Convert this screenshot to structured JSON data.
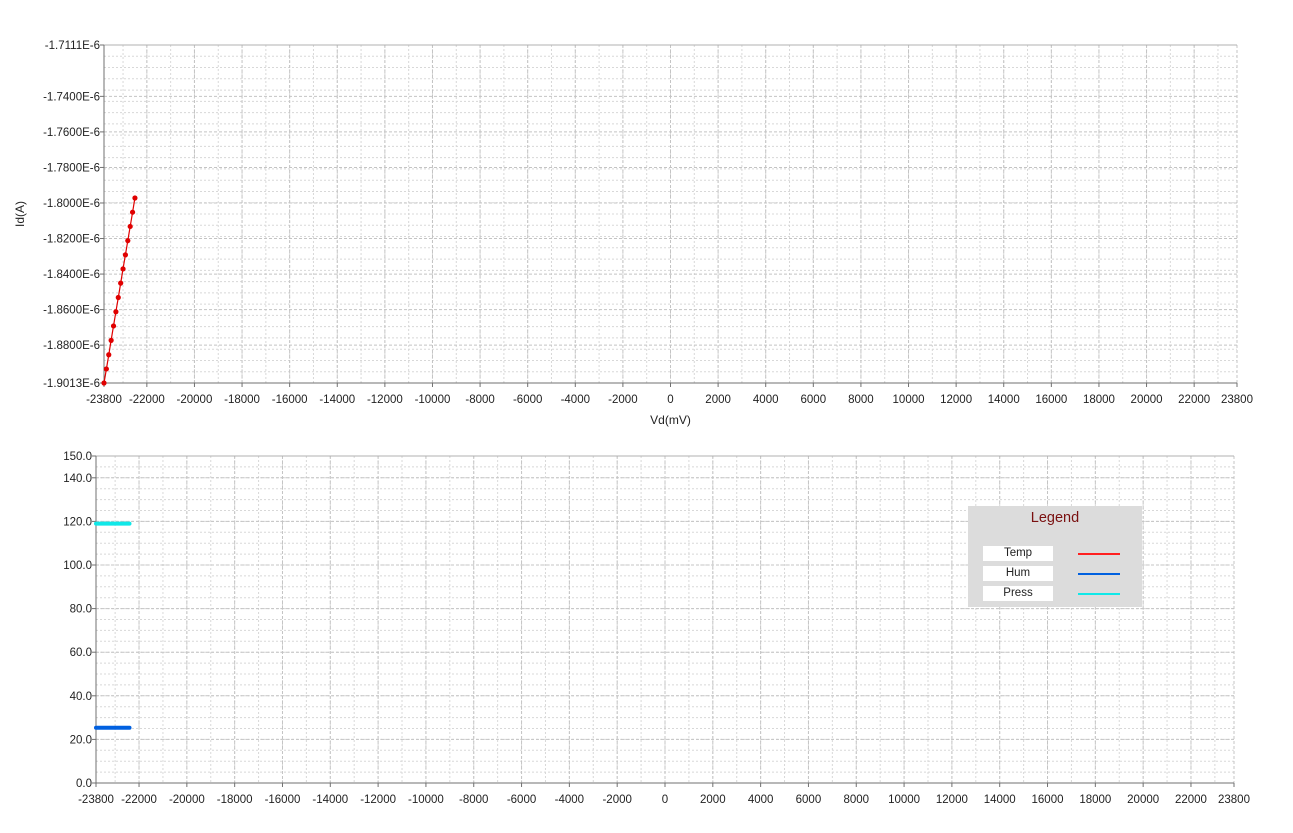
{
  "chart_data": [
    {
      "type": "line",
      "title": "",
      "xlabel": "Vd(mV)",
      "ylabel": "Id(A)",
      "xlim": [
        -23800,
        23800
      ],
      "ylim": [
        -1.9013e-06,
        -1.7111e-06
      ],
      "grid": true,
      "xticks": [
        -23800,
        -22000,
        -20000,
        -18000,
        -16000,
        -14000,
        -12000,
        -10000,
        -8000,
        -6000,
        -4000,
        -2000,
        0,
        2000,
        4000,
        6000,
        8000,
        10000,
        12000,
        14000,
        16000,
        18000,
        20000,
        22000,
        23800
      ],
      "xtick_labels": [
        "-23800",
        "-22000",
        "-20000",
        "-18000",
        "-16000",
        "-14000",
        "-12000",
        "-10000",
        "-8000",
        "-6000",
        "-4000",
        "-2000",
        "0",
        "2000",
        "4000",
        "6000",
        "8000",
        "10000",
        "12000",
        "14000",
        "16000",
        "18000",
        "20000",
        "22000",
        "23800"
      ],
      "yticks": [
        -1.7111e-06,
        -1.74e-06,
        -1.76e-06,
        -1.78e-06,
        -1.8e-06,
        -1.82e-06,
        -1.84e-06,
        -1.86e-06,
        -1.88e-06,
        -1.9013e-06
      ],
      "ytick_labels": [
        "-1.7111E-6",
        "-1.7400E-6",
        "-1.7600E-6",
        "-1.7800E-6",
        "-1.8000E-6",
        "-1.8200E-6",
        "-1.8400E-6",
        "-1.8600E-6",
        "-1.8800E-6",
        "-1.9013E-6"
      ],
      "series": [
        {
          "color": "#e00000",
          "markers": true,
          "x": [
            -23800,
            -23700,
            -23600,
            -23500,
            -23400,
            -23300,
            -23200,
            -23100,
            -23000,
            -22900,
            -22800,
            -22700,
            -22600,
            -22500
          ],
          "y": [
            -1.9013e-06,
            -1.8934e-06,
            -1.8854e-06,
            -1.8773e-06,
            -1.8692e-06,
            -1.8612e-06,
            -1.8532e-06,
            -1.8451e-06,
            -1.8371e-06,
            -1.8292e-06,
            -1.8212e-06,
            -1.8132e-06,
            -1.8052e-06,
            -1.7972e-06
          ]
        }
      ]
    },
    {
      "type": "line",
      "title": "",
      "xlabel": "",
      "ylabel": "",
      "xlim": [
        -23800,
        23800
      ],
      "ylim": [
        0,
        150
      ],
      "grid": true,
      "legend_position": "top-right",
      "xticks": [
        -23800,
        -22000,
        -20000,
        -18000,
        -16000,
        -14000,
        -12000,
        -10000,
        -8000,
        -6000,
        -4000,
        -2000,
        0,
        2000,
        4000,
        6000,
        8000,
        10000,
        12000,
        14000,
        16000,
        18000,
        20000,
        22000,
        23800
      ],
      "xtick_labels": [
        "-23800",
        "-22000",
        "-20000",
        "-18000",
        "-16000",
        "-14000",
        "-12000",
        "-10000",
        "-8000",
        "-6000",
        "-4000",
        "-2000",
        "0",
        "2000",
        "4000",
        "6000",
        "8000",
        "10000",
        "12000",
        "14000",
        "16000",
        "18000",
        "20000",
        "22000",
        "23800"
      ],
      "yticks": [
        0,
        20,
        40,
        60,
        80,
        100,
        120,
        140,
        150
      ],
      "ytick_labels": [
        "0.0",
        "20.0",
        "40.0",
        "60.0",
        "80.0",
        "100.0",
        "120.0",
        "140.0",
        "150.0"
      ],
      "legend_title": "Legend",
      "series": [
        {
          "name": "Temp",
          "color": "#ff2020",
          "x": [],
          "y": []
        },
        {
          "name": "Hum",
          "color": "#0060e0",
          "x": [
            -23800,
            -22400
          ],
          "y": [
            25.3,
            25.3
          ]
        },
        {
          "name": "Press",
          "color": "#10e8e8",
          "x": [
            -23800,
            -22400
          ],
          "y": [
            119.0,
            119.0
          ]
        }
      ]
    }
  ]
}
